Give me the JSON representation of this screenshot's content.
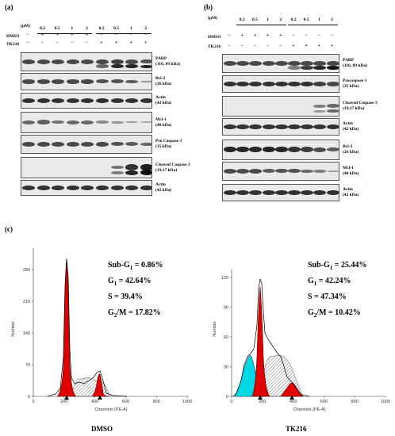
{
  "panels": {
    "a": {
      "label": "(a)",
      "unit_label": "(μM)",
      "concentrations": [
        "0.2",
        "0.5",
        "1",
        "2",
        "0.2",
        "0.5",
        "1",
        "2"
      ],
      "row_labels": [
        "DMSO",
        "TK216"
      ],
      "dmso_signs": [
        "−",
        "+",
        "+",
        "+",
        "+",
        "−",
        "−",
        "−",
        "−"
      ],
      "tk216_signs": [
        "−",
        "−",
        "−",
        "−",
        "−",
        "+",
        "+",
        "+",
        "+"
      ],
      "blots": [
        {
          "label": "PARP\n(116, 89 kDa)"
        },
        {
          "label": "Bcl-2\n(26 kDa)"
        },
        {
          "label": "Actin\n(42 kDa)"
        },
        {
          "label": "Mcl-1\n(40 kDa)"
        },
        {
          "label": "Pro Caspase 3\n(35 kDa)"
        },
        {
          "label": "Cleaved Caspase 3\n(19,17 kDa)"
        },
        {
          "label": "Actin\n(42 kDa)"
        }
      ]
    },
    "b": {
      "label": "(b)",
      "unit_label": "(μM)",
      "concentrations": [
        "0.2",
        "0.5",
        "1",
        "2",
        "0.2",
        "0.5",
        "1",
        "2"
      ],
      "row_labels": [
        "DMSO",
        "TK216"
      ],
      "dmso_signs": [
        "−",
        "+",
        "+",
        "+",
        "+",
        "−",
        "−",
        "−",
        "−"
      ],
      "tk216_signs": [
        "−",
        "−",
        "−",
        "−",
        "−",
        "+",
        "+",
        "+",
        "+"
      ],
      "blots": [
        {
          "label": "PARP\n(116, 89 kDa)"
        },
        {
          "label": "Procaspase 3\n(35 kDa)"
        },
        {
          "label": "Cleaved Caspase 3\n(19,17 kDa)"
        },
        {
          "label": "Actin\n(42 kDa)"
        },
        {
          "label": "Bcl-2\n(26 kDa)"
        },
        {
          "label": "Mcl-1\n(40 kDa)"
        },
        {
          "label": "Actin\n(42 kDa)"
        }
      ]
    },
    "c": {
      "label": "(c)",
      "histograms": [
        {
          "caption": "DMSO",
          "ylabel": "Number",
          "xlabel": "Channels (PE-A)",
          "yticks": [
            "0",
            "70",
            "140",
            "210",
            "280"
          ],
          "xticks": [
            "0",
            "200",
            "400",
            "600",
            "800",
            "1000"
          ],
          "stats": {
            "subg1": "Sub-G",
            "subg1_val": " = 0.86%",
            "g1": "G",
            "g1_val": " = 42.64%",
            "s": "S = 39.4%",
            "g2m": "G",
            "g2m_val": "/M = 17.82%"
          }
        },
        {
          "caption": "TK216",
          "ylabel": "Number",
          "xlabel": "Channels (PE-A)",
          "yticks": [
            "0",
            "30",
            "60",
            "90",
            "120"
          ],
          "xticks": [
            "0",
            "200",
            "400",
            "600",
            "800",
            "1000"
          ],
          "stats": {
            "subg1": "Sub-G",
            "subg1_val": " = 25.44%",
            "g1": "G",
            "g1_val": " = 42.24%",
            "s": "S = 47.34%",
            "g2m": "G",
            "g2m_val": "/M = 10.42%"
          }
        }
      ]
    }
  }
}
